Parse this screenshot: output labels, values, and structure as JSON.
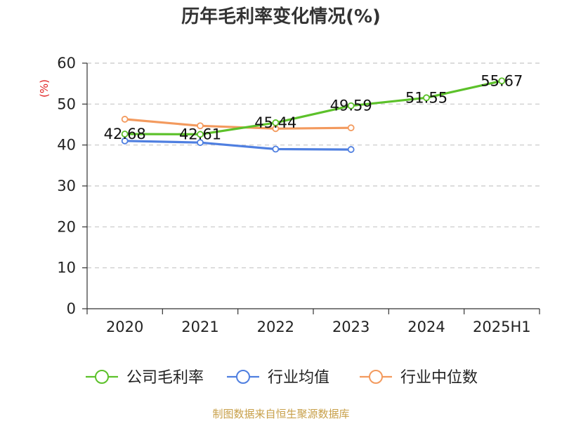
{
  "chart_data": {
    "type": "line",
    "title": "历年毛利率变化情况(%)",
    "ylabel": "(%)",
    "xlabel": "",
    "categories": [
      "2020",
      "2021",
      "2022",
      "2023",
      "2024",
      "2025H1"
    ],
    "ylim": [
      0,
      60
    ],
    "yticks": [
      0,
      10,
      20,
      30,
      40,
      50,
      60
    ],
    "grid": true,
    "legend_position": "bottom",
    "series": [
      {
        "name": "公司毛利率",
        "color": "#5cc12a",
        "values": [
          42.68,
          42.61,
          45.44,
          49.59,
          51.55,
          55.67
        ],
        "labels": [
          "42.68",
          "42.61",
          "45.44",
          "49.59",
          "51.55",
          "55.67"
        ]
      },
      {
        "name": "行业均值",
        "color": "#4f7fe0",
        "values": [
          41.0,
          40.6,
          39.0,
          38.9,
          null,
          null
        ]
      },
      {
        "name": "行业中位数",
        "color": "#f39a5e",
        "values": [
          46.3,
          44.7,
          44.0,
          44.2,
          null,
          null
        ]
      }
    ]
  },
  "source": "制图数据来自恒生聚源数据库"
}
